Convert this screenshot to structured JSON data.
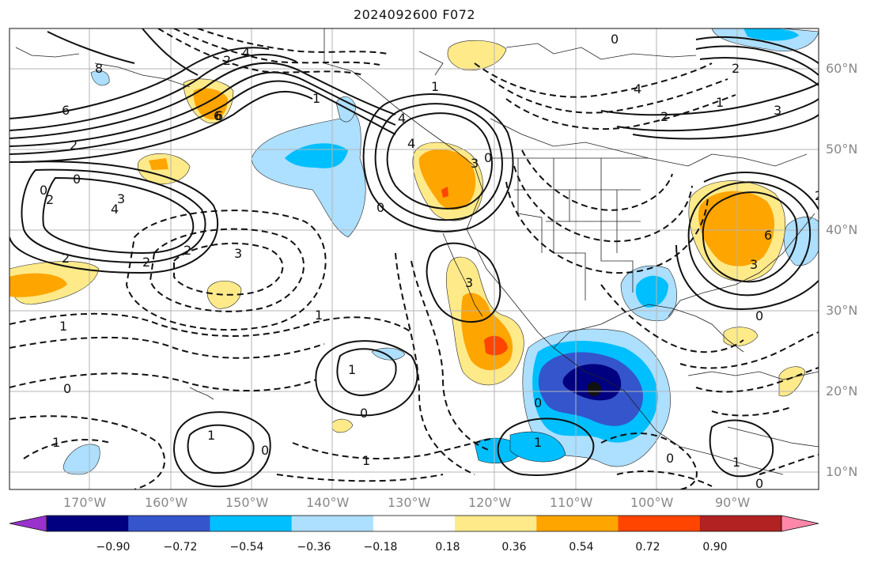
{
  "title": "2024092600 F072",
  "lat_labels": [
    "60°N",
    "50°N",
    "40°N",
    "30°N",
    "20°N",
    "10°N"
  ],
  "lon_labels": [
    "170°W",
    "160°W",
    "150°W",
    "140°W",
    "130°W",
    "120°W",
    "110°W",
    "100°W",
    "90°W"
  ],
  "colorbar": {
    "colors": [
      "#9932CC",
      "#000080",
      "#3455CC",
      "#00BFFF",
      "#ADDFFF",
      "#FFFFFF",
      "#FFEA8A",
      "#FFA500",
      "#FF4500",
      "#B22222",
      "#FF88AA"
    ],
    "tick_labels": [
      "−0.90",
      "−0.72",
      "−0.54",
      "−0.36",
      "−0.18",
      "0.18",
      "0.36",
      "0.54",
      "0.72",
      "0.90"
    ]
  },
  "contour_labels": [
    "8",
    "6",
    "6",
    "2",
    "0",
    "0",
    "2",
    "3",
    "4",
    "2",
    "2",
    "2",
    "3",
    "4",
    "2",
    "1",
    "0",
    "1",
    "6",
    "4",
    "1",
    "0",
    "0",
    "1",
    "4",
    "3",
    "3",
    "0",
    "1",
    "0",
    "1",
    "1",
    "0",
    "0",
    "1",
    "3",
    "6",
    "3",
    "2",
    "1",
    "0",
    "0",
    "1",
    "0",
    "1",
    "2",
    "4",
    "2"
  ]
}
